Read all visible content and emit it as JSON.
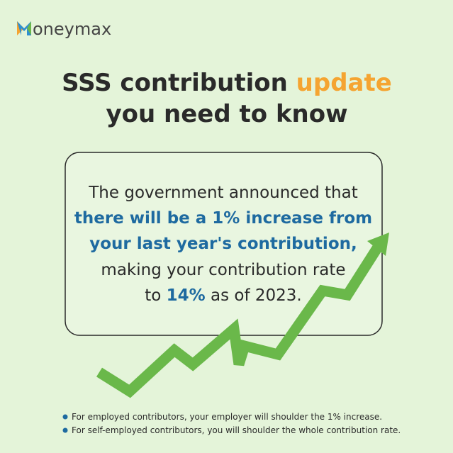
{
  "logo": {
    "text": "oneymax"
  },
  "title": {
    "line1": "SSS contribution",
    "highlight": "update",
    "line2": "you need to know"
  },
  "box": {
    "line1": "The government announced that",
    "highlight1": "there will be a 1% increase from",
    "highlight2": "your last year's contribution,",
    "line4": "making your contribution rate",
    "line5_start": "to",
    "rate": "14%",
    "line5_end": "as of 2023."
  },
  "bullets": [
    "For employed contributors, your employer will shoulder the 1% increase.",
    "For self-employed contributors, you will shoulder the whole contribution rate."
  ]
}
